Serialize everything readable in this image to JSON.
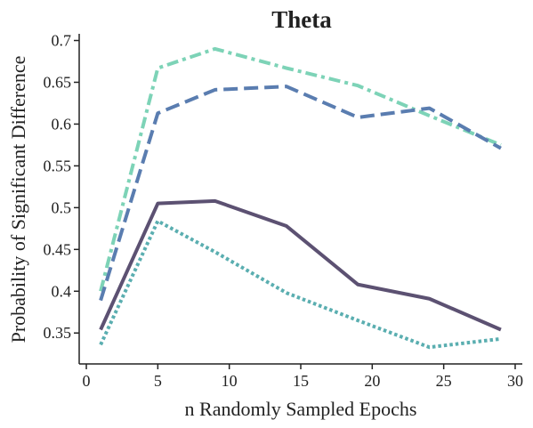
{
  "chart_data": {
    "type": "line",
    "title": "Theta",
    "xlabel": "n Randomly Sampled Epochs",
    "ylabel": "Probability of Significant Difference",
    "xlim": [
      -0.5,
      30.5
    ],
    "ylim": [
      0.313,
      0.708
    ],
    "xticks": [
      0,
      5,
      10,
      15,
      20,
      25,
      30
    ],
    "xtick_labels": [
      "0",
      "5",
      "10",
      "15",
      "20",
      "25",
      "30"
    ],
    "yticks": [
      0.35,
      0.4,
      0.45,
      0.5,
      0.55,
      0.6,
      0.65,
      0.7
    ],
    "ytick_labels": [
      "0.35",
      "0.4",
      "0.45",
      "0.5",
      "0.55",
      "0.6",
      "0.65",
      "0.7"
    ],
    "grid": false,
    "legend": "none",
    "x": [
      1,
      5,
      9,
      14,
      19,
      24,
      29
    ],
    "series": [
      {
        "values": [
          0.4,
          0.667,
          0.69,
          0.667,
          0.646,
          0.61,
          0.575
        ],
        "color": "#7dd3b7",
        "style": "dash-dot"
      },
      {
        "values": [
          0.389,
          0.613,
          0.641,
          0.645,
          0.608,
          0.619,
          0.571
        ],
        "color": "#5a7db0",
        "style": "dashed"
      },
      {
        "values": [
          0.354,
          0.505,
          0.508,
          0.478,
          0.408,
          0.391,
          0.354
        ],
        "color": "#5c5172",
        "style": "solid"
      },
      {
        "values": [
          0.336,
          0.484,
          0.447,
          0.398,
          0.365,
          0.333,
          0.343
        ],
        "color": "#5aaeb0",
        "style": "dotted"
      }
    ]
  }
}
